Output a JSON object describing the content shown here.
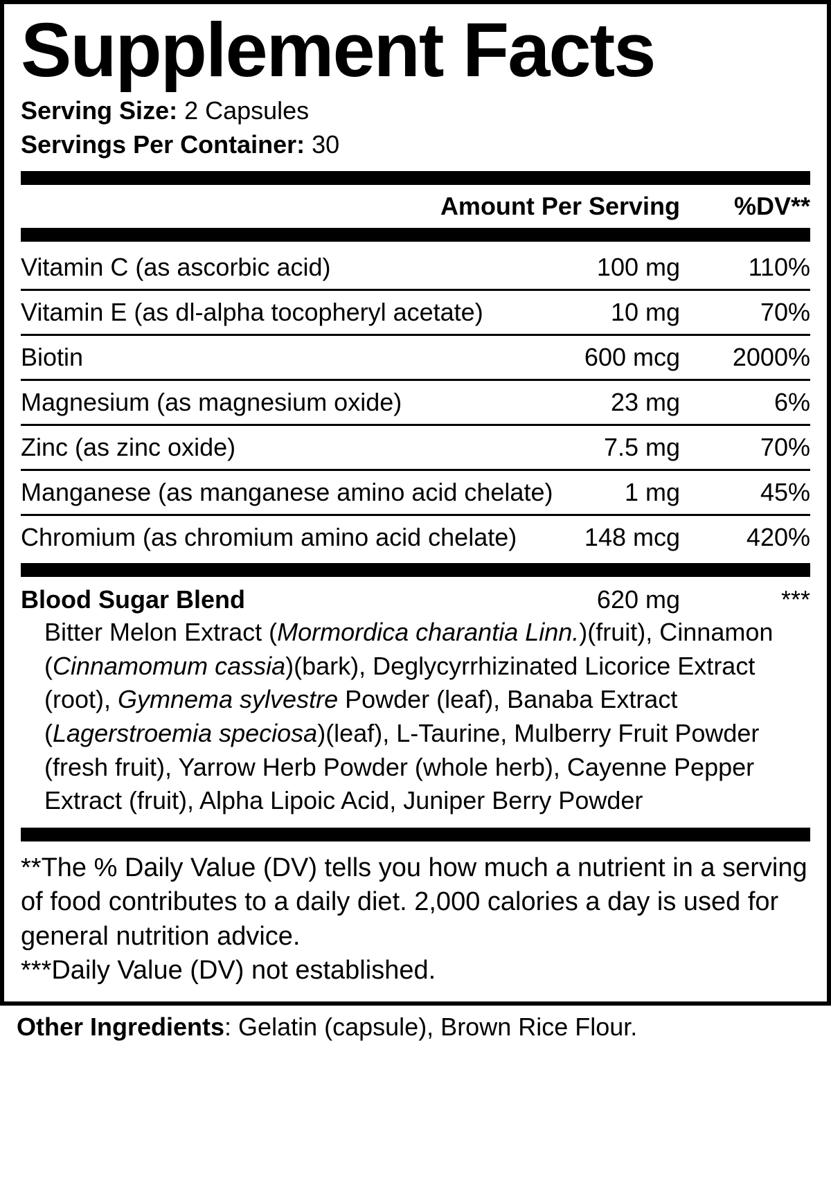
{
  "title": "Supplement Facts",
  "serving_size_label": "Serving Size:",
  "serving_size_value": " 2 Capsules",
  "servings_per_label": "Servings Per Container:",
  "servings_per_value": " 30",
  "header": {
    "amount": "Amount Per Serving",
    "dv": "%DV**"
  },
  "nutrients": [
    {
      "name": "Vitamin C (as ascorbic acid)",
      "amount": "100 mg",
      "dv": "110%"
    },
    {
      "name": "Vitamin E (as dl-alpha tocopheryl acetate)",
      "amount": "10 mg",
      "dv": "70%"
    },
    {
      "name": "Biotin",
      "amount": "600 mcg",
      "dv": "2000%"
    },
    {
      "name": "Magnesium (as magnesium oxide)",
      "amount": "23 mg",
      "dv": "6%"
    },
    {
      "name": "Zinc (as zinc oxide)",
      "amount": "7.5 mg",
      "dv": "70%"
    },
    {
      "name": "Manganese (as manganese amino acid chelate)",
      "amount": "1 mg",
      "dv": "45%"
    },
    {
      "name": "Chromium (as chromium amino acid chelate)",
      "amount": "148 mcg",
      "dv": "420%"
    }
  ],
  "blend": {
    "name": "Blood Sugar Blend",
    "amount": "620 mg",
    "dv": "***",
    "text_parts": [
      {
        "t": "Bitter Melon Extract ("
      },
      {
        "t": "Mormordica charantia Linn.",
        "i": true
      },
      {
        "t": ")(fruit), Cinnamon ("
      },
      {
        "t": "Cinnamomum cassia",
        "i": true
      },
      {
        "t": ")(bark), Deglycyrrhizinated Licorice Extract (root), "
      },
      {
        "t": "Gymnema sylvestre",
        "i": true
      },
      {
        "t": " Powder (leaf), Banaba Extract ("
      },
      {
        "t": "Lagerstroemia speciosa",
        "i": true
      },
      {
        "t": ")(leaf), L-Taurine, Mulberry Fruit Powder (fresh fruit), Yarrow Herb Powder (whole herb), Cayenne Pepper Extract (fruit), Alpha Lipoic Acid, Juniper Berry Powder"
      }
    ]
  },
  "footnote1": "**The % Daily Value (DV) tells you how much a nutrient in a serving of food contributes to a daily diet. 2,000 calories a day is used for general nutrition advice.",
  "footnote2": "***Daily Value (DV) not established.",
  "other_label": "Other Ingredients",
  "other_value": ": Gelatin (capsule), Brown Rice Flour."
}
